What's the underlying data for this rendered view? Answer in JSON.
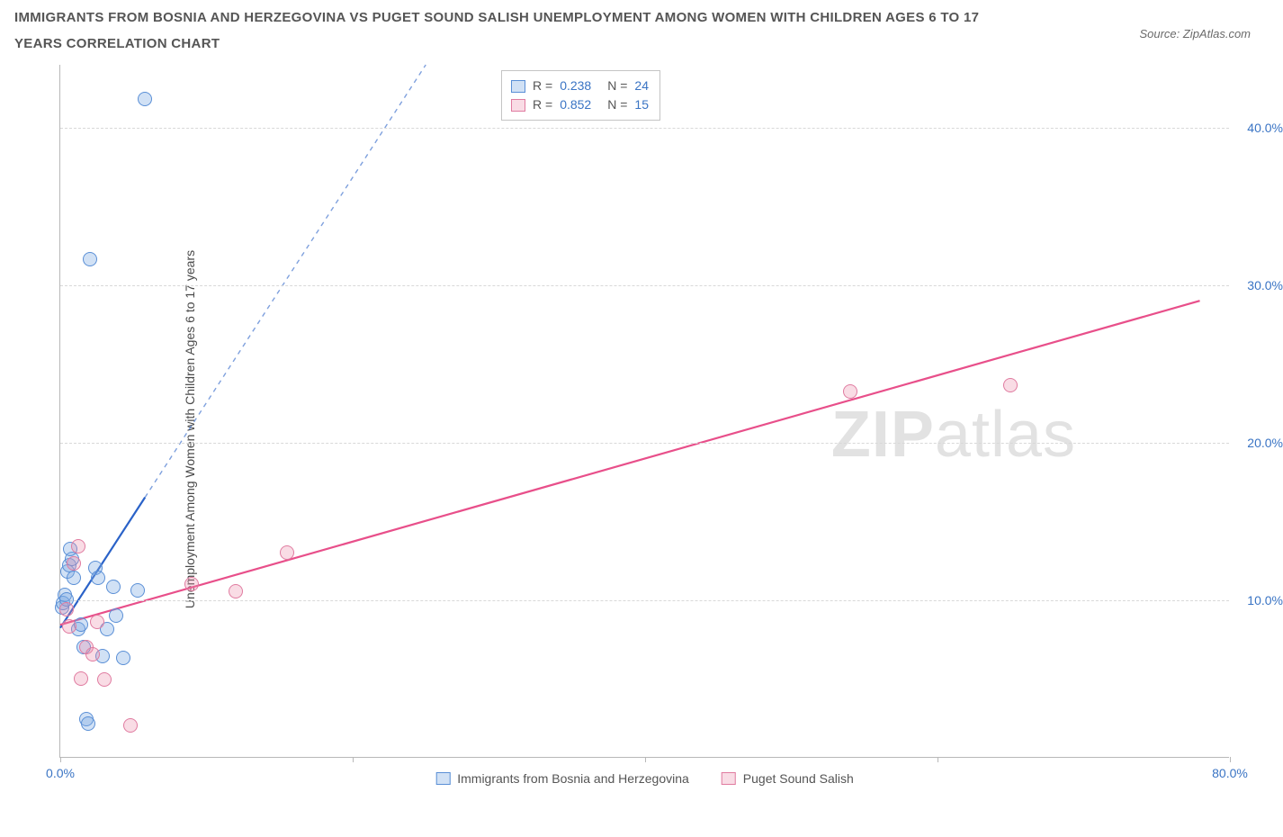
{
  "title": "IMMIGRANTS FROM BOSNIA AND HERZEGOVINA VS PUGET SOUND SALISH UNEMPLOYMENT AMONG WOMEN WITH CHILDREN AGES 6 TO 17 YEARS CORRELATION CHART",
  "source_label": "Source: ZipAtlas.com",
  "y_axis_label": "Unemployment Among Women with Children Ages 6 to 17 years",
  "watermark_bold": "ZIP",
  "watermark_light": "atlas",
  "chart": {
    "type": "scatter",
    "xlim": [
      0,
      80
    ],
    "ylim": [
      0,
      44
    ],
    "x_ticks": [
      0,
      20,
      40,
      60,
      80
    ],
    "x_tick_labels": [
      "0.0%",
      "",
      "",
      "",
      "80.0%"
    ],
    "y_ticks": [
      10,
      20,
      30,
      40
    ],
    "y_tick_labels": [
      "10.0%",
      "20.0%",
      "30.0%",
      "40.0%"
    ],
    "grid_color": "#d8d8d8",
    "axis_color": "#b8b8b8",
    "background_color": "#ffffff",
    "tick_label_color": "#3a74c4",
    "series": [
      {
        "name": "Immigrants from Bosnia and Herzegovina",
        "short": "s1",
        "color_fill": "rgba(122,168,226,0.35)",
        "color_border": "#5a8fd6",
        "trend_color": "#2a62c8",
        "r": 0.238,
        "n": 24,
        "trend": {
          "x1": 0.0,
          "y1": 8.2,
          "x2": 5.8,
          "y2": 16.5,
          "extend_x2": 33.0,
          "extend_y2": 55.0,
          "dashed_extend": true
        },
        "points": [
          [
            0.1,
            9.5
          ],
          [
            0.2,
            9.8
          ],
          [
            0.3,
            10.3
          ],
          [
            0.4,
            10.0
          ],
          [
            0.5,
            11.8
          ],
          [
            0.6,
            12.2
          ],
          [
            0.8,
            12.6
          ],
          [
            0.9,
            11.4
          ],
          [
            1.2,
            8.1
          ],
          [
            1.4,
            8.4
          ],
          [
            1.6,
            7.0
          ],
          [
            1.8,
            2.4
          ],
          [
            1.9,
            2.1
          ],
          [
            2.4,
            12.0
          ],
          [
            2.6,
            11.4
          ],
          [
            2.9,
            6.4
          ],
          [
            3.2,
            8.1
          ],
          [
            3.6,
            10.8
          ],
          [
            3.8,
            9.0
          ],
          [
            4.3,
            6.3
          ],
          [
            5.3,
            10.6
          ],
          [
            5.8,
            41.8
          ],
          [
            2.0,
            31.6
          ],
          [
            0.7,
            13.2
          ]
        ]
      },
      {
        "name": "Puget Sound Salish",
        "short": "s2",
        "color_fill": "rgba(236,140,170,0.30)",
        "color_border": "#e07ba0",
        "trend_color": "#e84f8a",
        "r": 0.852,
        "n": 15,
        "trend": {
          "x1": 0.0,
          "y1": 8.4,
          "x2": 78.0,
          "y2": 29.0,
          "dashed_extend": false
        },
        "points": [
          [
            0.4,
            9.4
          ],
          [
            0.6,
            8.3
          ],
          [
            0.9,
            12.3
          ],
          [
            1.2,
            13.4
          ],
          [
            1.4,
            5.0
          ],
          [
            1.8,
            7.0
          ],
          [
            2.2,
            6.5
          ],
          [
            2.5,
            8.6
          ],
          [
            3.0,
            4.9
          ],
          [
            4.8,
            2.0
          ],
          [
            9.0,
            11.0
          ],
          [
            12.0,
            10.5
          ],
          [
            15.5,
            13.0
          ],
          [
            54.0,
            23.2
          ],
          [
            65.0,
            23.6
          ]
        ]
      }
    ],
    "legend_box": {
      "rows": [
        {
          "swatch": "s1",
          "r_label": "R =",
          "r_value": "0.238",
          "n_label": "N =",
          "n_value": "24"
        },
        {
          "swatch": "s2",
          "r_label": "R =",
          "r_value": "0.852",
          "n_label": "N =",
          "n_value": "15"
        }
      ]
    },
    "bottom_legend": [
      {
        "swatch": "s1",
        "label": "Immigrants from Bosnia and Herzegovina"
      },
      {
        "swatch": "s2",
        "label": "Puget Sound Salish"
      }
    ]
  }
}
